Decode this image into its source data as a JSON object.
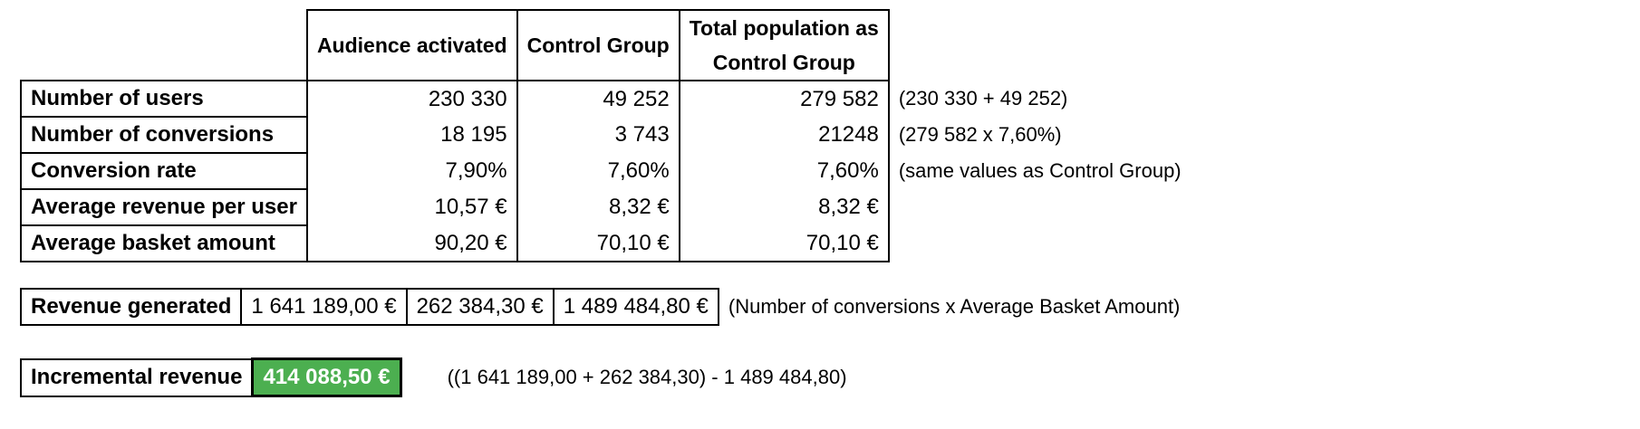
{
  "headers": {
    "audience_activated": "Audience activated",
    "control_group": "Control Group",
    "total_population_line1": "Total population as",
    "total_population_line2": "Control Group"
  },
  "rows": [
    {
      "label": "Number of users",
      "audience": "230 330",
      "control": "49 252",
      "total": "279 582",
      "note": "(230 330 + 49 252)"
    },
    {
      "label": "Number of conversions",
      "audience": "18 195",
      "control": "3 743",
      "total": "21248",
      "note": "(279 582 x 7,60%)"
    },
    {
      "label": "Conversion rate",
      "audience": "7,90%",
      "control": "7,60%",
      "total": "7,60%",
      "note": "(same values as Control Group)"
    },
    {
      "label": "Average revenue per user",
      "audience": "10,57 €",
      "control": "8,32 €",
      "total": "8,32 €",
      "note": ""
    },
    {
      "label": "Average basket amount",
      "audience": "90,20 €",
      "control": "70,10 €",
      "total": "70,10 €",
      "note": ""
    }
  ],
  "revenue": {
    "label": "Revenue generated",
    "audience": "1 641 189,00 €",
    "control": "262 384,30 €",
    "total": "1 489 484,80 €",
    "note": "(Number of conversions x Average Basket Amount)"
  },
  "incremental": {
    "label": "Incremental revenue",
    "value": "414 088,50 €",
    "note": "((1 641 189,00 + 262 384,30) - 1 489 484,80)",
    "highlight_color": "#4caf50"
  }
}
